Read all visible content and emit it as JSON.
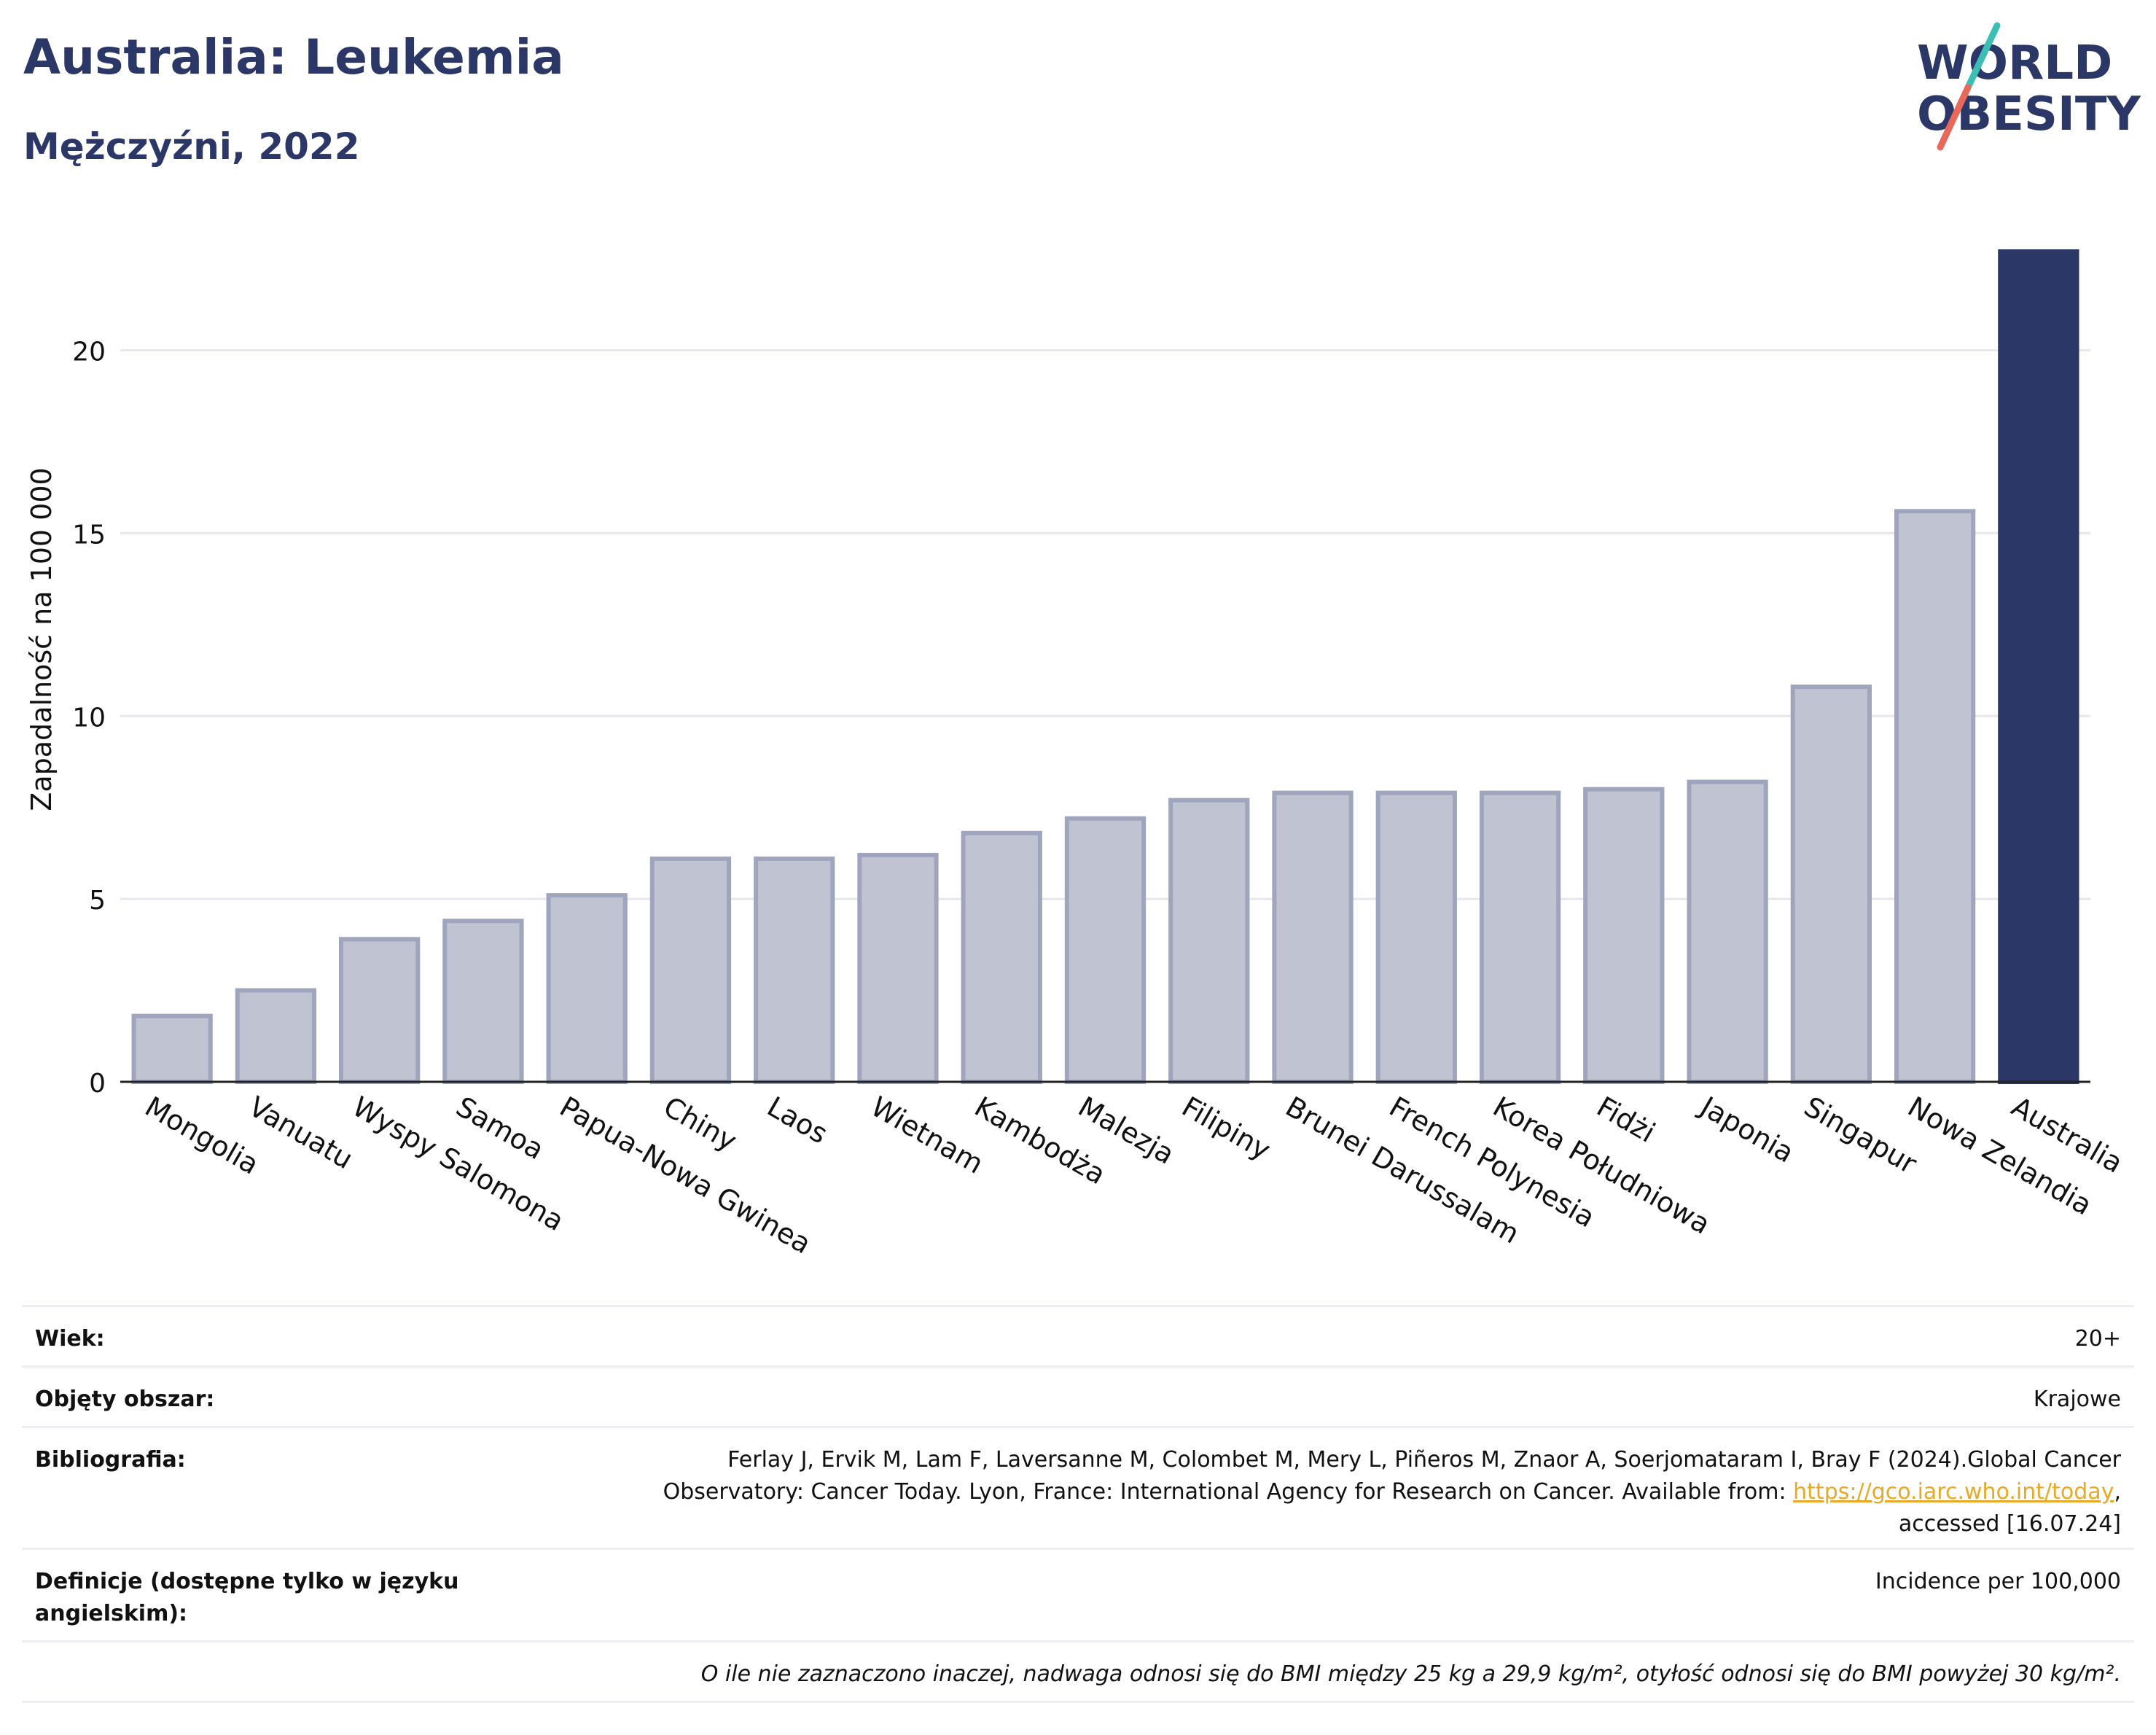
{
  "header": {
    "title": "Australia: Leukemia",
    "subtitle": "Mężczyźni, 2022"
  },
  "logo": {
    "line1": "WORLD",
    "line2": "OBESITY",
    "colors": {
      "text": "#2b3766",
      "slash_teal": "#3bbfb5",
      "slash_coral": "#e8685a"
    }
  },
  "chart_data": {
    "type": "bar",
    "ylabel": "Zapadalność na 100 000",
    "xlabel": "",
    "ylim": [
      0,
      23
    ],
    "yticks": [
      0,
      5,
      10,
      15,
      20
    ],
    "grid": true,
    "categories": [
      "Mongolia",
      "Vanuatu",
      "Wyspy Salomona",
      "Samoa",
      "Papua-Nowa Gwinea",
      "Chiny",
      "Laos",
      "Wietnam",
      "Kambodża",
      "Malezja",
      "Filipiny",
      "Brunei Darussalam",
      "French Polynesia",
      "Korea Południowa",
      "Fidżi",
      "Japonia",
      "Singapur",
      "Nowa Zelandia",
      "Australia"
    ],
    "values": [
      1.8,
      2.5,
      3.9,
      4.4,
      5.1,
      6.1,
      6.1,
      6.2,
      6.8,
      7.2,
      7.7,
      7.9,
      7.9,
      7.9,
      8.0,
      8.2,
      10.8,
      15.6,
      22.7
    ],
    "highlight": "Australia",
    "colors": {
      "bar": "#c0c4d2",
      "bar_border": "#9ea5bd",
      "highlight": "#2b3766"
    }
  },
  "meta": {
    "age_label": "Wiek:",
    "age_value": "20+",
    "area_label": "Objęty obszar:",
    "area_value": "Krajowe",
    "bib_label": "Bibliografia:",
    "bib_text": "Ferlay J, Ervik M, Lam F, Laversanne M, Colombet M, Mery L, Piñeros M, Znaor A, Soerjomataram I, Bray F (2024).Global Cancer Observatory: Cancer Today. Lyon, France: International Agency for Research on Cancer. Available from: ",
    "bib_link": "https://gco.iarc.who.int/today",
    "bib_suffix": ", accessed [16.07.24]",
    "def_label": "Definicje (dostępne tylko w języku angielskim):",
    "def_value": "Incidence per 100,000",
    "note": "O ile nie zaznaczono inaczej, nadwaga odnosi się do BMI między 25 kg a 29,9 kg/m², otyłość odnosi się do BMI powyżej 30 kg/m²."
  }
}
